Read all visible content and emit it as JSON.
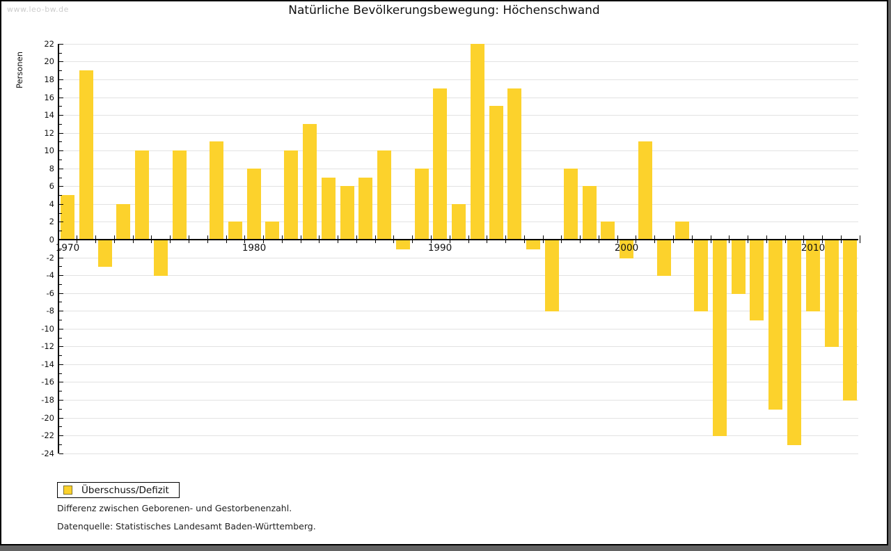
{
  "page": {
    "watermark": "www.leo-bw.de",
    "title": "Natürliche Bevölkerungsbewegung: Höchenschwand",
    "y_axis_label": "Personen",
    "legend_label": "Überschuss/Defizit",
    "footnote_definition": "Differenz zwischen Geborenen- und Gestorbenenzahl.",
    "footnote_source": "Datenquelle: Statistisches Landesamt Baden-Württemberg.",
    "colors": {
      "bar": "#fcd22c",
      "legend_swatch_border": "#84752c",
      "grid": "#e2e2e2",
      "axis": "#000000",
      "watermark": "#cccccc",
      "page_edge_shadow": "#636363"
    }
  },
  "chart_data": {
    "type": "bar",
    "title": "Natürliche Bevölkerungsbewegung: Höchenschwand",
    "xlabel": "",
    "ylabel": "Personen",
    "series_name": "Überschuss/Defizit",
    "ylim": [
      -24,
      22
    ],
    "y_tick_step": 2,
    "grid": true,
    "legend_position": "bottom-left",
    "x_tick_labels": [
      "1970",
      "1980",
      "1990",
      "2000",
      "2010"
    ],
    "y_tick_labels": [
      "22",
      "20",
      "18",
      "16",
      "14",
      "12",
      "10",
      "8",
      "6",
      "4",
      "2",
      "0",
      "-2",
      "-4",
      "-6",
      "-8",
      "-10",
      "-12",
      "-14",
      "-16",
      "-18",
      "-20",
      "-22",
      "-24"
    ],
    "x": [
      1970,
      1971,
      1972,
      1973,
      1974,
      1975,
      1976,
      1977,
      1978,
      1979,
      1980,
      1981,
      1982,
      1983,
      1984,
      1985,
      1986,
      1987,
      1988,
      1989,
      1990,
      1991,
      1992,
      1993,
      1994,
      1995,
      1996,
      1997,
      1998,
      1999,
      2000,
      2001,
      2002,
      2003,
      2004,
      2005,
      2006,
      2007,
      2008,
      2009,
      2010,
      2011,
      2012
    ],
    "values": [
      5,
      19,
      -3,
      4,
      10,
      -4,
      10,
      0,
      11,
      2,
      8,
      2,
      10,
      13,
      7,
      6,
      7,
      10,
      -1,
      8,
      17,
      4,
      22,
      15,
      17,
      -1,
      -8,
      8,
      6,
      2,
      -2,
      11,
      -4,
      2,
      -8,
      -22,
      -6,
      -9,
      -19,
      -23,
      -8,
      -12,
      -18
    ]
  }
}
